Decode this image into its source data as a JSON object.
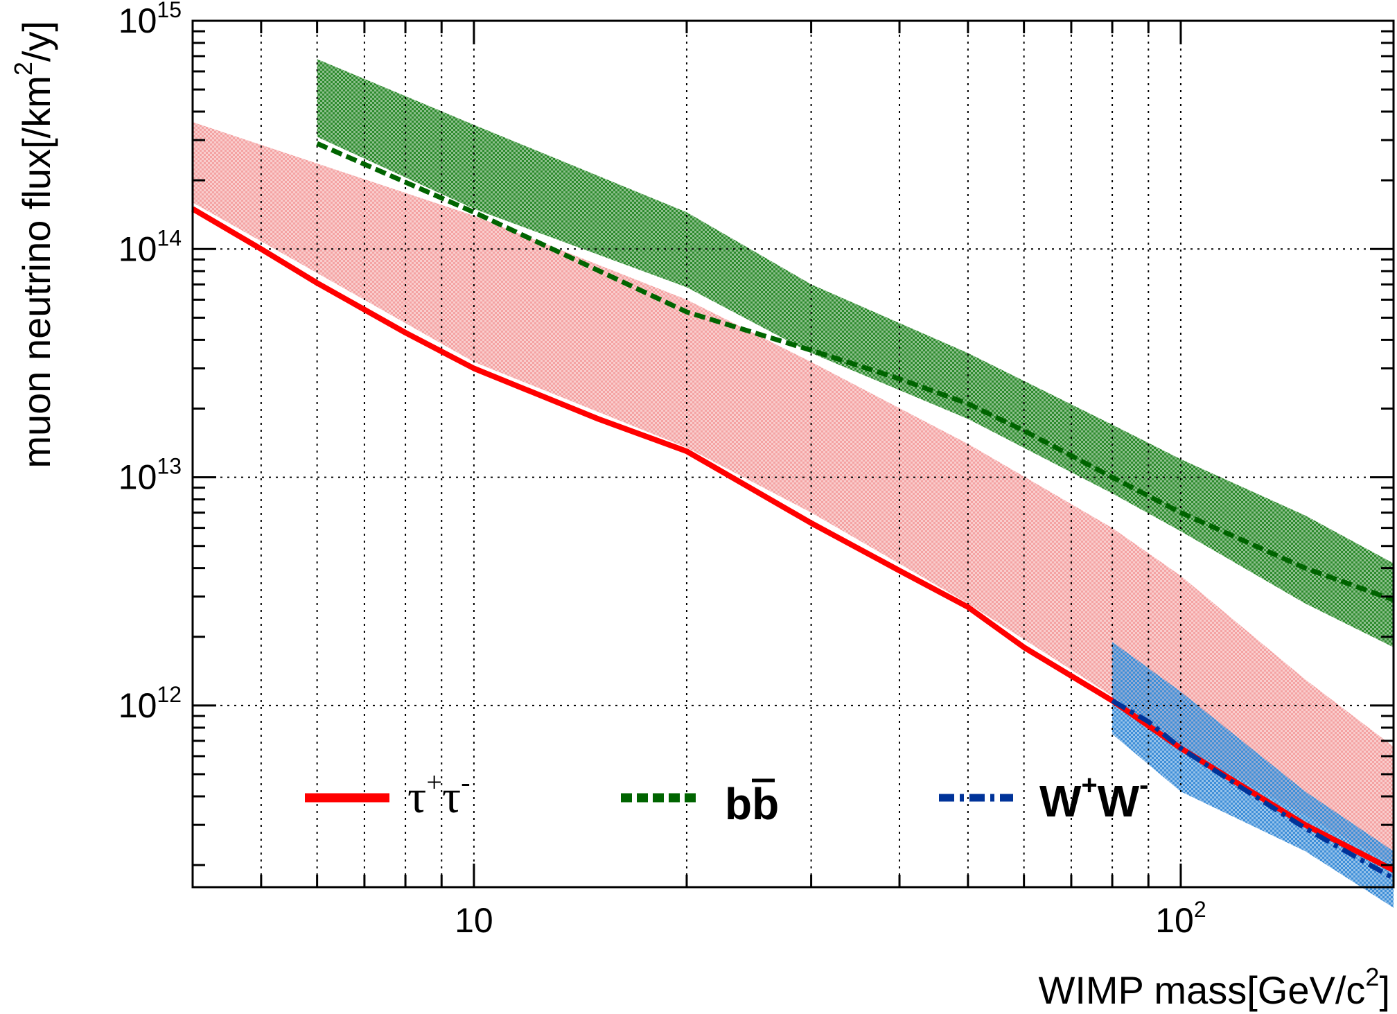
{
  "chart_data": {
    "type": "line",
    "title": "",
    "xlabel": "WIMP mass[GeV/c²]",
    "xlabel_parts": {
      "main": "WIMP mass[GeV/c",
      "sup": "2",
      "end": "]"
    },
    "ylabel": "muon neutrino flux[/km²/y]",
    "ylabel_parts": {
      "main": "muon neutrino flux[/km",
      "sup": "2",
      "end": "/y]"
    },
    "x_scale": "log",
    "y_scale": "log",
    "xlim": [
      4,
      200
    ],
    "ylim": [
      160000000000.0,
      1000000000000000.0
    ],
    "grid": true,
    "legend_position": "bottom (single row)",
    "x_ticks": [
      {
        "value": 10,
        "base": "10",
        "exp": ""
      },
      {
        "value": 100,
        "base": "10",
        "exp": "2"
      }
    ],
    "y_ticks": [
      {
        "value": 1000000000000.0,
        "base": "10",
        "exp": "12"
      },
      {
        "value": 10000000000000.0,
        "base": "10",
        "exp": "13"
      },
      {
        "value": 100000000000000.0,
        "base": "10",
        "exp": "14"
      },
      {
        "value": 1000000000000000.0,
        "base": "10",
        "exp": "15"
      }
    ],
    "series": [
      {
        "name": "τ⁺τ⁻",
        "legend_main": "τ",
        "legend_sup1": "+",
        "legend_main2": "τ",
        "legend_sup2": "-",
        "color": "#ff0000",
        "band_color": "#f4a3a3",
        "style": "solid",
        "x": [
          4,
          5,
          6,
          8,
          10,
          15,
          20,
          30,
          40,
          50,
          60,
          80,
          100,
          150,
          200
        ],
        "y": [
          150000000000000.0,
          100000000000000.0,
          71000000000000.0,
          43000000000000.0,
          30000000000000.0,
          18000000000000.0,
          13000000000000.0,
          6300000000000.0,
          3900000000000.0,
          2700000000000.0,
          1800000000000.0,
          1050000000000.0,
          650000000000.0,
          300000000000.0,
          190000000000.0
        ],
        "band_x": [
          4,
          10,
          20,
          30,
          50,
          80,
          100,
          150,
          200
        ],
        "band_upper": [
          360000000000000.0,
          140000000000000.0,
          60000000000000.0,
          32000000000000.0,
          14000000000000.0,
          6000000000000.0,
          3700000000000.0,
          1300000000000.0,
          660000000000.0
        ],
        "band_lower": [
          160000000000000.0,
          32000000000000.0,
          13500000000000.0,
          7000000000000.0,
          2800000000000.0,
          1100000000000.0,
          660000000000.0,
          330000000000.0,
          200000000000.0
        ]
      },
      {
        "name": "bb̄",
        "legend_main": "b",
        "legend_over": "b",
        "color": "#006400",
        "band_color": "#2e8b2e",
        "style": "dashed",
        "x": [
          6,
          10,
          20,
          30,
          40,
          50,
          60,
          80,
          100,
          150,
          200
        ],
        "y": [
          290000000000000.0,
          145000000000000.0,
          53000000000000.0,
          36000000000000.0,
          27000000000000.0,
          21000000000000.0,
          16000000000000.0,
          10000000000000.0,
          7000000000000.0,
          4000000000000.0,
          2900000000000.0
        ],
        "band_x": [
          6,
          10,
          20,
          30,
          50,
          80,
          100,
          150,
          200
        ],
        "band_upper": [
          680000000000000.0,
          350000000000000.0,
          145000000000000.0,
          70000000000000.0,
          35000000000000.0,
          17000000000000.0,
          12000000000000.0,
          6800000000000.0,
          4200000000000.0
        ],
        "band_lower": [
          310000000000000.0,
          150000000000000.0,
          68000000000000.0,
          35000000000000.0,
          18000000000000.0,
          8500000000000.0,
          5800000000000.0,
          2800000000000.0,
          1800000000000.0
        ]
      },
      {
        "name": "W⁺W⁻",
        "legend_main": "W",
        "legend_sup1": "+",
        "legend_main2": "W",
        "legend_sup2": "-",
        "color": "#003399",
        "band_color": "#3f8fd8",
        "style": "dashdot",
        "x": [
          80,
          90,
          100,
          120,
          150,
          200
        ],
        "y": [
          1050000000000.0,
          850000000000.0,
          650000000000.0,
          450000000000.0,
          290000000000.0,
          175000000000.0
        ],
        "band_x": [
          80,
          100,
          150,
          200
        ],
        "band_upper": [
          1900000000000.0,
          1150000000000.0,
          420000000000.0,
          230000000000.0
        ],
        "band_lower": [
          750000000000.0,
          420000000000.0,
          230000000000.0,
          130000000000.0
        ]
      }
    ]
  }
}
